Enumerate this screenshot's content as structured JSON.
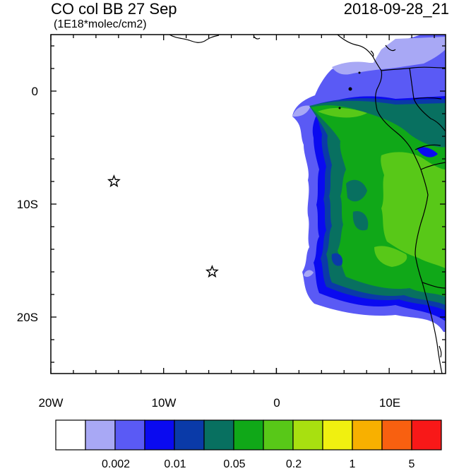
{
  "title": "CO col BB 27 Sep",
  "units": "(1E18*molec/cm2)",
  "datetime": "2018-09-28_21",
  "lat_labels": [
    {
      "text": "0",
      "lat": 0
    },
    {
      "text": "10S",
      "lat": -10
    },
    {
      "text": "20S",
      "lat": -20
    }
  ],
  "lon_labels": [
    {
      "text": "20W",
      "lon": -20
    },
    {
      "text": "10W",
      "lon": -10
    },
    {
      "text": "0",
      "lon": 0
    },
    {
      "text": "10E",
      "lon": 10
    }
  ],
  "map_extent": {
    "lon_min": -20,
    "lon_max": 15,
    "lat_min": -25,
    "lat_max": 5
  },
  "markers": [
    {
      "name": "star-marker",
      "lon": -14.4,
      "lat": -8.0
    },
    {
      "name": "star-marker",
      "lon": -5.7,
      "lat": -16.0
    }
  ],
  "colorbar": {
    "colors": [
      "#ffffff",
      "#a8a8f5",
      "#5a5af5",
      "#0a0af0",
      "#0a3aa8",
      "#087060",
      "#10a818",
      "#58c818",
      "#a8e010",
      "#f0f010",
      "#f8b000",
      "#f86010",
      "#f81818"
    ],
    "labels": [
      "0.002",
      "0.01",
      "0.05",
      "0.2",
      "1",
      "5"
    ]
  }
}
